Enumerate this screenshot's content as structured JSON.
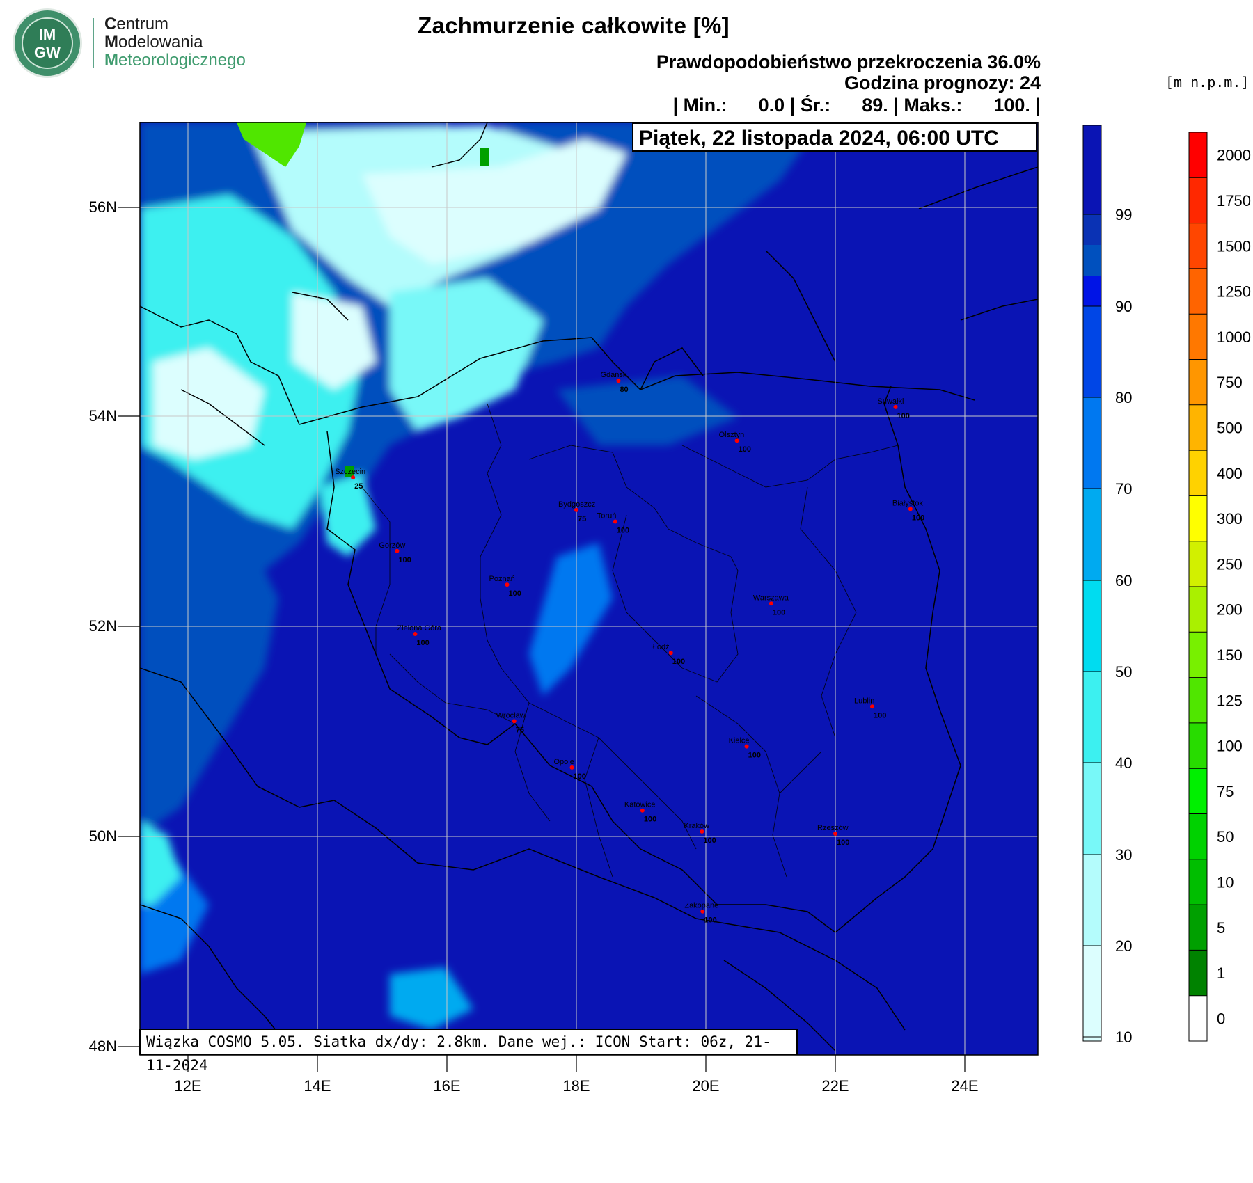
{
  "logo": {
    "line1": "IM",
    "line2": "GW"
  },
  "org": {
    "l1_cap": "C",
    "l1_rest": "entrum",
    "l2_cap": "M",
    "l2_rest": "odelowania",
    "l3_cap": "M",
    "l3_rest": "eteorologicznego"
  },
  "title": "Zachmurzenie całkowite [%]",
  "subtitle": "Prawdopodobieństwo przekroczenia 36.0%",
  "forecast_hour": "Godzina prognozy: 24",
  "stats_line": "| Min.:      0.0 | Śr.:      89. | Maks.:      100. |",
  "date_label": "Piątek, 22 listopada 2024, 06:00 UTC",
  "unit_label": "[m n.p.m.]",
  "footer": "Wiązka COSMO 5.05. Siatka dx/dy: 2.8km. Dane wej.: ICON Start: 06z, 21-11-2024",
  "lat_labels": [
    "56N",
    "54N",
    "52N",
    "50N",
    "48N"
  ],
  "lon_labels": [
    "12E",
    "14E",
    "16E",
    "18E",
    "20E",
    "22E",
    "24E"
  ],
  "cloud_colorbar": {
    "labels": [
      "99",
      "90",
      "80",
      "70",
      "60",
      "50",
      "40",
      "30",
      "20",
      "10"
    ],
    "colors": [
      "#0a14b4",
      "#0a32b4",
      "#0050be",
      "#0014e6",
      "#0046e6",
      "#0078f0",
      "#00aaf0",
      "#00dcf0",
      "#3cf0f0",
      "#78f8f8",
      "#b4fcfc",
      "#dcfefe"
    ]
  },
  "terrain_colorbar": {
    "labels": [
      "2000",
      "1750",
      "1500",
      "1250",
      "1000",
      "750",
      "500",
      "400",
      "300",
      "250",
      "200",
      "150",
      "125",
      "100",
      "75",
      "50",
      "10",
      "5",
      "1",
      "0"
    ],
    "colors": [
      "#ff0000",
      "#ff2800",
      "#ff4600",
      "#ff6400",
      "#ff7800",
      "#ff9600",
      "#ffb400",
      "#ffd200",
      "#ffff00",
      "#d2f000",
      "#aaf000",
      "#78f000",
      "#50e600",
      "#28dc00",
      "#00f000",
      "#00d200",
      "#00be00",
      "#00a000",
      "#008200",
      "#ffffff"
    ]
  },
  "cities": [
    {
      "name": "Gdańsk",
      "value": "80",
      "lon": 18.65,
      "lat": 54.35
    },
    {
      "name": "Suwałki",
      "value": "100",
      "lon": 22.93,
      "lat": 54.1
    },
    {
      "name": "Olsztyn",
      "value": "100",
      "lon": 20.48,
      "lat": 53.78
    },
    {
      "name": "Szczecin",
      "value": "25",
      "lon": 14.55,
      "lat": 53.43
    },
    {
      "name": "Bydgoszcz",
      "value": "75",
      "lon": 18.0,
      "lat": 53.12
    },
    {
      "name": "Toruń",
      "value": "100",
      "lon": 18.6,
      "lat": 53.01
    },
    {
      "name": "Białystok",
      "value": "100",
      "lon": 23.16,
      "lat": 53.13
    },
    {
      "name": "Gorzów",
      "value": "100",
      "lon": 15.23,
      "lat": 52.73
    },
    {
      "name": "Poznań",
      "value": "100",
      "lon": 16.93,
      "lat": 52.41
    },
    {
      "name": "Warszawa",
      "value": "100",
      "lon": 21.01,
      "lat": 52.23
    },
    {
      "name": "Zielona Góra",
      "value": "100",
      "lon": 15.51,
      "lat": 51.94
    },
    {
      "name": "Łódź",
      "value": "100",
      "lon": 19.46,
      "lat": 51.76
    },
    {
      "name": "Lublin",
      "value": "100",
      "lon": 22.57,
      "lat": 51.25
    },
    {
      "name": "Wrocław",
      "value": "75",
      "lon": 17.04,
      "lat": 51.11
    },
    {
      "name": "Kielce",
      "value": "100",
      "lon": 20.63,
      "lat": 50.87
    },
    {
      "name": "Opole",
      "value": "100",
      "lon": 17.93,
      "lat": 50.67
    },
    {
      "name": "Katowice",
      "value": "100",
      "lon": 19.02,
      "lat": 50.26
    },
    {
      "name": "Kraków",
      "value": "100",
      "lon": 19.94,
      "lat": 50.06
    },
    {
      "name": "Rzeszów",
      "value": "100",
      "lon": 22.0,
      "lat": 50.04
    },
    {
      "name": "Zakopane",
      "value": "100",
      "lon": 19.95,
      "lat": 49.3
    }
  ]
}
